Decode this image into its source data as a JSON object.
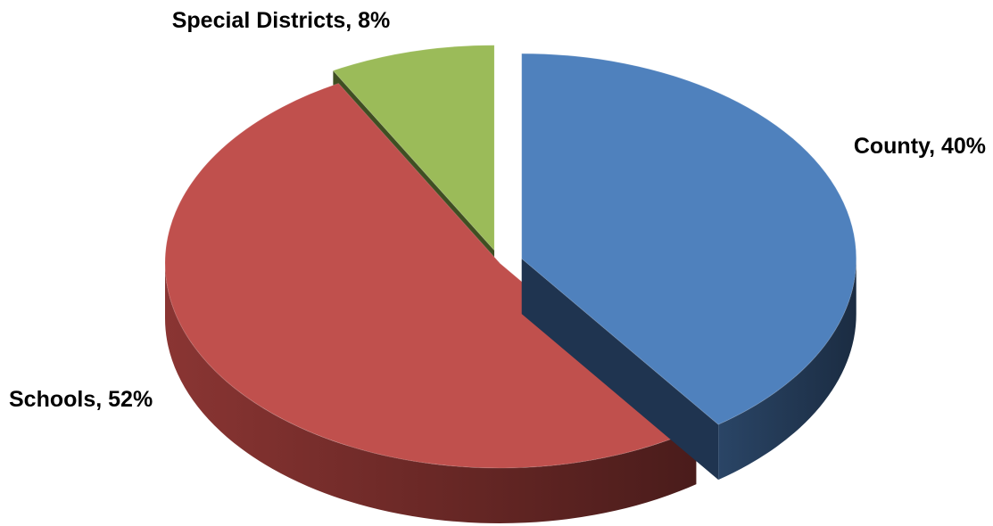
{
  "chart_data": {
    "type": "pie",
    "style": "3d-exploded",
    "title": "",
    "slices": [
      {
        "name": "County",
        "value": 40,
        "label": "County, 40%",
        "color": "#4f81bd",
        "side_color": "#1f3450"
      },
      {
        "name": "Schools",
        "value": 52,
        "label": "Schools, 52%",
        "color": "#c0504d",
        "side_color": "#6e2a29"
      },
      {
        "name": "Special Districts",
        "value": 8,
        "label": "Special Districts, 8%",
        "color": "#9bbb59",
        "side_color": "#3f4f22"
      }
    ],
    "legend": "none"
  }
}
